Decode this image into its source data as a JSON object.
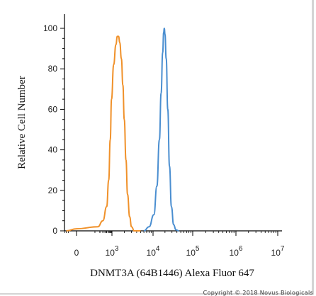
{
  "chart_data": {
    "type": "line",
    "xlabel": "DNMT3A (64B1446) Alexa Fluor 647",
    "ylabel": "Relative Cell Number",
    "x_scale": "biexponential",
    "ylim": [
      0,
      100
    ],
    "y_ticks": [
      0,
      20,
      40,
      60,
      80,
      100
    ],
    "x_ticks": [
      {
        "value": 0,
        "base": "0",
        "exp": ""
      },
      {
        "value": 1000,
        "base": "10",
        "exp": "3"
      },
      {
        "value": 10000,
        "base": "10",
        "exp": "4"
      },
      {
        "value": 100000,
        "base": "10",
        "exp": "5"
      },
      {
        "value": 1000000,
        "base": "10",
        "exp": "6"
      },
      {
        "value": 10000000,
        "base": "10",
        "exp": "7"
      }
    ],
    "grid": false,
    "series": [
      {
        "color": "#f0912a",
        "points": [
          [
            -200,
            0
          ],
          [
            0,
            1
          ],
          [
            150,
            2
          ],
          [
            300,
            5
          ],
          [
            500,
            12
          ],
          [
            650,
            25
          ],
          [
            800,
            45
          ],
          [
            950,
            65
          ],
          [
            1100,
            82
          ],
          [
            1250,
            92
          ],
          [
            1350,
            96
          ],
          [
            1450,
            96
          ],
          [
            1550,
            93
          ],
          [
            1700,
            85
          ],
          [
            1850,
            72
          ],
          [
            2000,
            55
          ],
          [
            2200,
            35
          ],
          [
            2400,
            18
          ],
          [
            2700,
            7
          ],
          [
            3000,
            2
          ],
          [
            3500,
            0
          ],
          [
            5000,
            0
          ]
        ]
      },
      {
        "color": "#4a8ed0",
        "points": [
          [
            6000,
            0
          ],
          [
            8000,
            2
          ],
          [
            10500,
            8
          ],
          [
            12500,
            22
          ],
          [
            14500,
            45
          ],
          [
            16000,
            68
          ],
          [
            17500,
            88
          ],
          [
            18500,
            98
          ],
          [
            19200,
            100
          ],
          [
            20000,
            97
          ],
          [
            21500,
            85
          ],
          [
            23500,
            60
          ],
          [
            26000,
            32
          ],
          [
            29000,
            12
          ],
          [
            33000,
            3
          ],
          [
            38000,
            0.5
          ],
          [
            45000,
            0
          ]
        ]
      }
    ]
  },
  "copyright": "Copyright © 2018 Novus Biologicals"
}
